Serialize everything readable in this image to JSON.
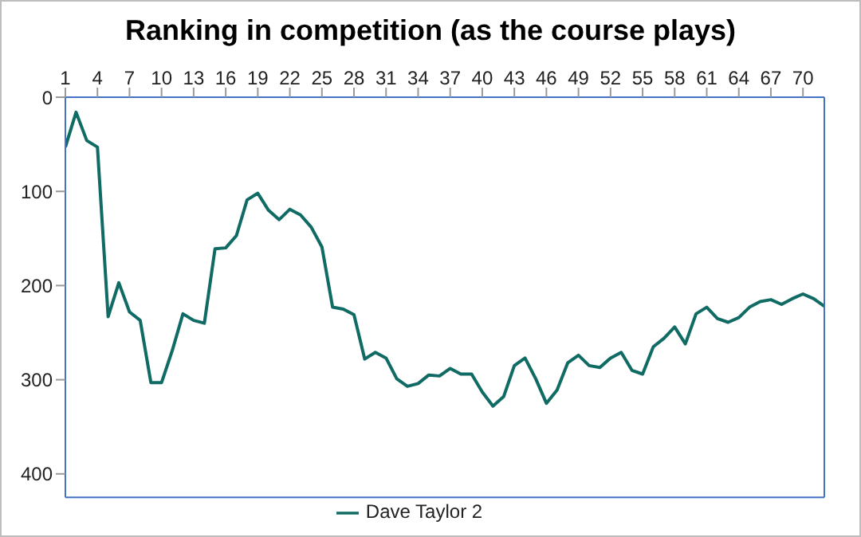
{
  "chart_data": {
    "type": "line",
    "title": "Ranking in competition (as the course plays)",
    "x": [
      1,
      2,
      3,
      4,
      5,
      6,
      7,
      8,
      9,
      10,
      11,
      12,
      13,
      14,
      15,
      16,
      17,
      18,
      19,
      20,
      21,
      22,
      23,
      24,
      25,
      26,
      27,
      28,
      29,
      30,
      31,
      32,
      33,
      34,
      35,
      36,
      37,
      38,
      39,
      40,
      41,
      42,
      43,
      44,
      45,
      46,
      47,
      48,
      49,
      50,
      51,
      52,
      53,
      54,
      55,
      56,
      57,
      58,
      59,
      60,
      61,
      62,
      63,
      64,
      65,
      66,
      67,
      68,
      69,
      70,
      71,
      72
    ],
    "series": [
      {
        "name": "Dave Taylor 2",
        "color": "#0f6b63",
        "values": [
          53,
          16,
          46,
          53,
          233,
          197,
          228,
          237,
          303,
          303,
          269,
          230,
          237,
          240,
          161,
          160,
          147,
          109,
          102,
          120,
          130,
          119,
          125,
          138,
          159,
          223,
          225,
          231,
          278,
          271,
          277,
          299,
          307,
          304,
          295,
          296,
          288,
          294,
          294,
          313,
          328,
          318,
          285,
          277,
          299,
          325,
          311,
          282,
          274,
          285,
          287,
          277,
          271,
          290,
          294,
          265,
          256,
          244,
          262,
          230,
          223,
          235,
          239,
          234,
          223,
          217,
          215,
          220,
          214,
          209,
          214,
          222
        ]
      }
    ],
    "xlim": [
      1,
      72
    ],
    "xticks": [
      1,
      4,
      7,
      10,
      13,
      16,
      19,
      22,
      25,
      28,
      31,
      34,
      37,
      40,
      43,
      46,
      49,
      52,
      55,
      58,
      61,
      64,
      67,
      70
    ],
    "ylim": [
      425,
      0
    ],
    "yticks": [
      0,
      100,
      200,
      300,
      400
    ],
    "grid": false,
    "legend": "bottom",
    "marker": "none",
    "line_style": "solid"
  }
}
